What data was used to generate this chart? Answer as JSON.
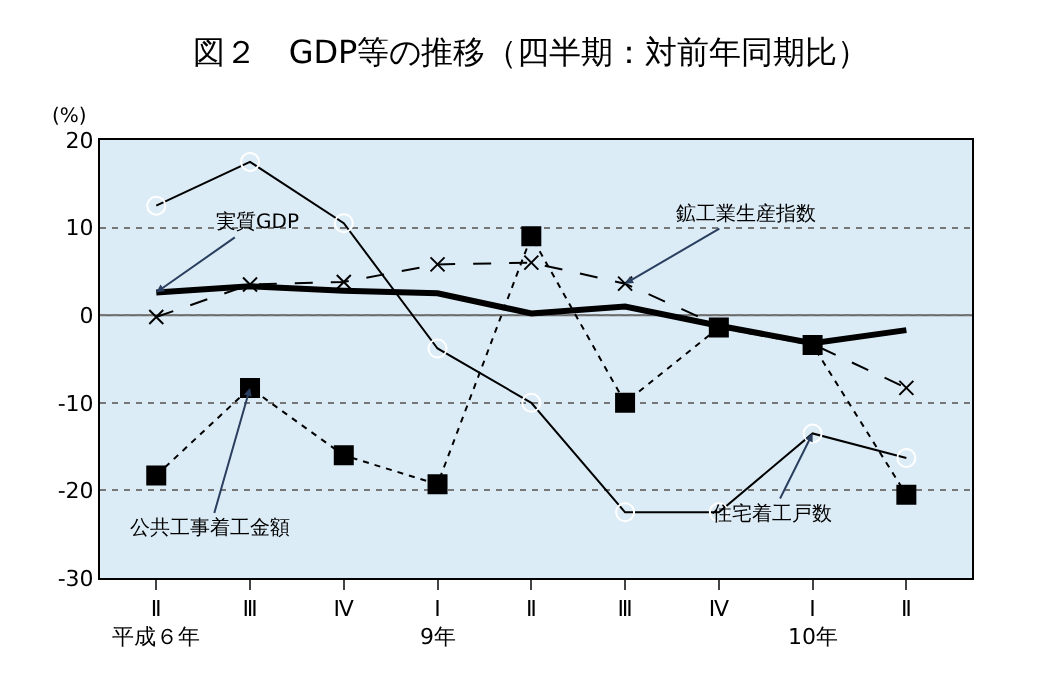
{
  "chart_data": {
    "type": "line",
    "title": "図２　GDP等の推移（四半期：対前年同期比）",
    "ylabel": "(%)",
    "categories": [
      "Ⅱ",
      "Ⅲ",
      "Ⅳ",
      "Ⅰ",
      "Ⅱ",
      "Ⅲ",
      "Ⅳ",
      "Ⅰ",
      "Ⅱ"
    ],
    "series": [
      {
        "name": "実質GDP",
        "color": "#000000",
        "marker": "none",
        "line_style": "solid",
        "values": [
          2.6,
          3.3,
          2.8,
          2.5,
          0.2,
          1.0,
          -1.2,
          -3.2,
          -1.7
        ]
      },
      {
        "name": "鉱工業生産指数",
        "color": "#000000",
        "marker": "cross",
        "line_style": "dashed",
        "values": [
          -0.2,
          3.5,
          3.8,
          5.8,
          6.0,
          3.6,
          -1.2,
          -3.3,
          -8.3
        ]
      },
      {
        "name": "公共工事着工金額",
        "color": "#000000",
        "marker": "square",
        "line_style": "dotted",
        "values": [
          -18.3,
          -8.3,
          -16.0,
          -19.3,
          9.0,
          -10.0,
          -1.4,
          -3.4,
          -20.5
        ]
      },
      {
        "name": "住宅着工戸数",
        "color": "#000000",
        "marker": "circle",
        "line_style": "solid",
        "values": [
          12.5,
          17.5,
          10.5,
          -3.8,
          -10.0,
          -22.5,
          -22.5,
          -13.5,
          -16.3
        ]
      }
    ],
    "annotations": [
      "平成６年",
      "9年",
      "10年"
    ],
    "ylim": [
      -30,
      20
    ],
    "yticks": [
      -30,
      -20,
      -10,
      0,
      10,
      20
    ],
    "grid": "y",
    "legend": false
  }
}
